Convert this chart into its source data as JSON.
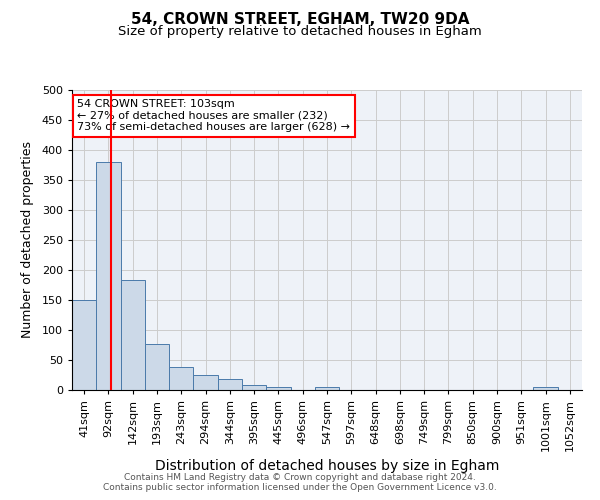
{
  "title1": "54, CROWN STREET, EGHAM, TW20 9DA",
  "title2": "Size of property relative to detached houses in Egham",
  "xlabel": "Distribution of detached houses by size in Egham",
  "ylabel": "Number of detached properties",
  "footnote1": "Contains HM Land Registry data © Crown copyright and database right 2024.",
  "footnote2": "Contains public sector information licensed under the Open Government Licence v3.0.",
  "categories": [
    "41sqm",
    "92sqm",
    "142sqm",
    "193sqm",
    "243sqm",
    "294sqm",
    "344sqm",
    "395sqm",
    "445sqm",
    "496sqm",
    "547sqm",
    "597sqm",
    "648sqm",
    "698sqm",
    "749sqm",
    "799sqm",
    "850sqm",
    "900sqm",
    "951sqm",
    "1001sqm",
    "1052sqm"
  ],
  "values": [
    150,
    380,
    183,
    77,
    38,
    25,
    18,
    8,
    5,
    0,
    5,
    0,
    0,
    0,
    0,
    0,
    0,
    0,
    0,
    5,
    0
  ],
  "bar_color": "#ccd9e8",
  "bar_edge_color": "#4a7aaa",
  "red_line_x": 1.12,
  "annotation_text": "54 CROWN STREET: 103sqm\n← 27% of detached houses are smaller (232)\n73% of semi-detached houses are larger (628) →",
  "annotation_box_color": "white",
  "annotation_box_edge_color": "red",
  "ylim": [
    0,
    500
  ],
  "yticks": [
    0,
    50,
    100,
    150,
    200,
    250,
    300,
    350,
    400,
    450,
    500
  ],
  "grid_color": "#cccccc",
  "background_color": "#eef2f8",
  "title1_fontsize": 11,
  "title2_fontsize": 9.5,
  "xlabel_fontsize": 10,
  "ylabel_fontsize": 9,
  "tick_fontsize": 8,
  "annot_fontsize": 8
}
